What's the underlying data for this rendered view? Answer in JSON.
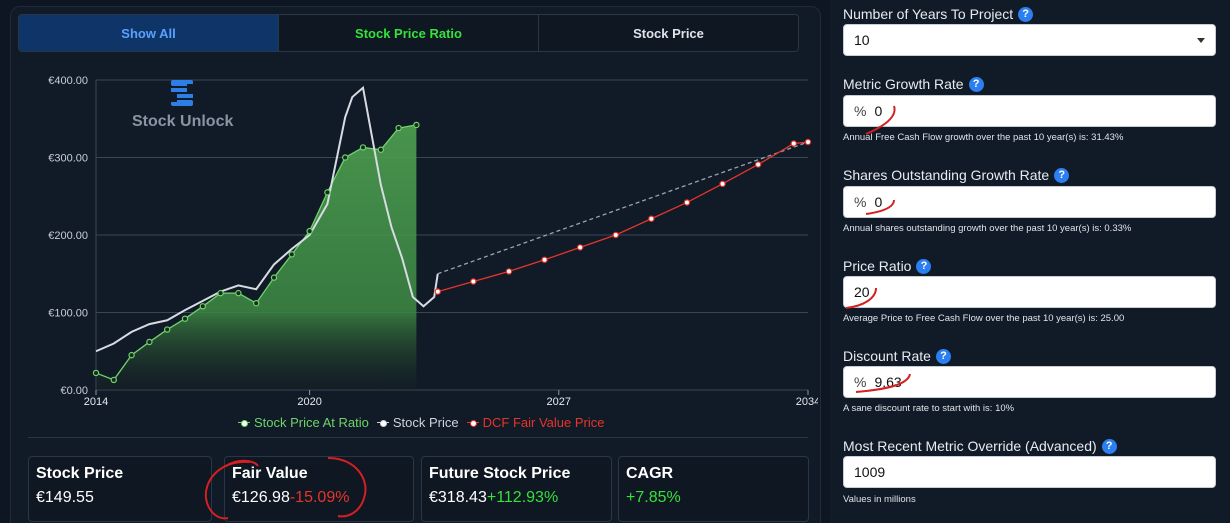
{
  "tabs": [
    "Show All",
    "Stock Price Ratio",
    "Stock Price"
  ],
  "watermark": "Stock Unlock",
  "legend": {
    "ratio": "Stock Price At Ratio",
    "price": "Stock Price",
    "dcf": "DCF Fair Value Price"
  },
  "colors": {
    "green": "#34e23a",
    "red": "#e5352b",
    "blue": "#5aa0ff"
  },
  "chart_data": {
    "type": "line",
    "x_ticks": [
      "2014",
      "2020",
      "2027",
      "2034"
    ],
    "y_ticks": [
      "€0.00",
      "€100.00",
      "€200.00",
      "€300.00",
      "€400.00"
    ],
    "ylim": [
      0,
      400
    ],
    "xlim": [
      2014,
      2034
    ],
    "series": [
      {
        "name": "Stock Price At Ratio",
        "color": "#6fd36a",
        "points": [
          [
            2014.0,
            22
          ],
          [
            2014.5,
            13
          ],
          [
            2015.0,
            45
          ],
          [
            2015.5,
            62
          ],
          [
            2016.0,
            78
          ],
          [
            2016.5,
            92
          ],
          [
            2017.0,
            108
          ],
          [
            2017.5,
            125
          ],
          [
            2018.0,
            125
          ],
          [
            2018.5,
            112
          ],
          [
            2019.0,
            145
          ],
          [
            2019.5,
            175
          ],
          [
            2020.0,
            205
          ],
          [
            2020.5,
            255
          ],
          [
            2021.0,
            300
          ],
          [
            2021.5,
            313
          ],
          [
            2022.0,
            310
          ],
          [
            2022.5,
            338
          ],
          [
            2023.0,
            342
          ]
        ]
      },
      {
        "name": "Stock Price",
        "color": "#d7dbe2",
        "points": [
          [
            2014.0,
            50
          ],
          [
            2014.5,
            60
          ],
          [
            2015.0,
            75
          ],
          [
            2015.5,
            85
          ],
          [
            2016.0,
            90
          ],
          [
            2016.5,
            103
          ],
          [
            2017.0,
            115
          ],
          [
            2017.5,
            127
          ],
          [
            2018.0,
            135
          ],
          [
            2018.5,
            130
          ],
          [
            2019.0,
            162
          ],
          [
            2019.5,
            182
          ],
          [
            2020.0,
            200
          ],
          [
            2020.5,
            240
          ],
          [
            2021.0,
            352
          ],
          [
            2021.2,
            378
          ],
          [
            2021.5,
            390
          ],
          [
            2022.0,
            265
          ],
          [
            2022.3,
            210
          ],
          [
            2022.6,
            170
          ],
          [
            2022.9,
            120
          ],
          [
            2023.2,
            108
          ],
          [
            2023.5,
            120
          ],
          [
            2023.6,
            150
          ]
        ]
      },
      {
        "name": "Stock Price Projection",
        "color": "#9aa3b0",
        "dashed": true,
        "points": [
          [
            2023.6,
            150
          ],
          [
            2034,
            320
          ]
        ]
      },
      {
        "name": "DCF Fair Value Price",
        "color": "#e5352b",
        "points": [
          [
            2023.6,
            127
          ],
          [
            2024.6,
            140
          ],
          [
            2025.6,
            153
          ],
          [
            2026.6,
            168
          ],
          [
            2027.6,
            184
          ],
          [
            2028.6,
            200
          ],
          [
            2029.6,
            221
          ],
          [
            2030.6,
            242
          ],
          [
            2031.6,
            266
          ],
          [
            2032.6,
            291
          ],
          [
            2033.6,
            318
          ],
          [
            2034,
            320
          ]
        ]
      }
    ]
  },
  "cards": [
    {
      "title": "Stock Price",
      "value": "€149.55",
      "change": ""
    },
    {
      "title": "Fair Value",
      "value": "€126.98",
      "change": "-15.09%"
    },
    {
      "title": "Future Stock Price",
      "value": "€318.43",
      "change": "+112.93%"
    },
    {
      "title": "CAGR",
      "value": "",
      "change": "+7.85%"
    }
  ],
  "form": {
    "years_label": "Number of Years To Project",
    "years_value": "10",
    "metric_label": "Metric Growth Rate",
    "metric_prefix": "%",
    "metric_value": "0",
    "metric_hint": "Annual Free Cash Flow growth over the past 10 year(s) is: 31.43%",
    "shares_label": "Shares Outstanding Growth Rate",
    "shares_prefix": "%",
    "shares_value": "0",
    "shares_hint": "Annual shares outstanding growth over the past 10 year(s) is: 0.33%",
    "ratio_label": "Price Ratio",
    "ratio_value": "20",
    "ratio_hint": "Average Price to Free Cash Flow over the past 10 year(s) is: 25.00",
    "discount_label": "Discount Rate",
    "discount_prefix": "%",
    "discount_value": "9.63",
    "discount_hint": "A sane discount rate to start with is: 10%",
    "override_label": "Most Recent Metric Override (Advanced)",
    "override_value": "1009",
    "override_hint": "Values in millions"
  }
}
